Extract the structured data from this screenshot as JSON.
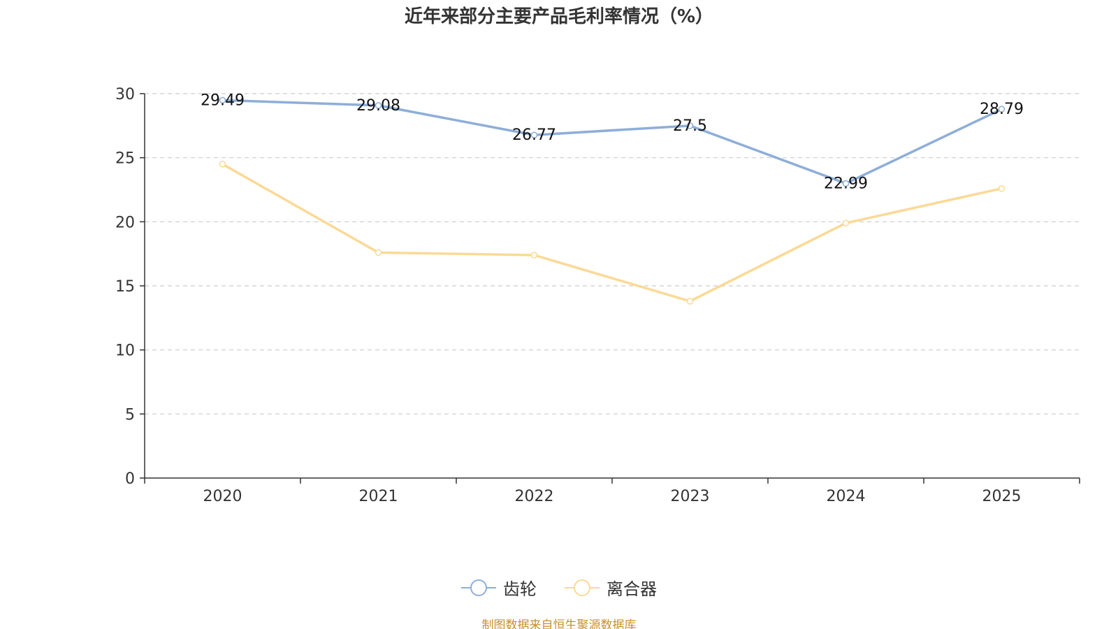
{
  "chart_data": {
    "type": "line",
    "title": "近年来部分主要产品毛利率情况（%）",
    "categories": [
      "2020",
      "2021",
      "2022",
      "2023",
      "2024",
      "2025"
    ],
    "series": [
      {
        "name": "齿轮",
        "color": "#8eaed9",
        "values": [
          29.49,
          29.08,
          26.77,
          27.5,
          22.99,
          28.79
        ],
        "labels": [
          "29.49",
          "29.08",
          "26.77",
          "27.5",
          "22.99",
          "28.79"
        ],
        "show_labels": true
      },
      {
        "name": "离合器",
        "color": "#fbd996",
        "values": [
          24.5,
          17.6,
          17.4,
          13.8,
          19.9,
          22.6
        ],
        "show_labels": false
      }
    ],
    "ylim": [
      0,
      30
    ],
    "yticks": [
      "0",
      "5",
      "10",
      "15",
      "20",
      "25",
      "30"
    ],
    "grid": true,
    "legend": "bottom-center",
    "xlabel": "",
    "ylabel": ""
  },
  "source_note": "制图数据来自恒生聚源数据库"
}
